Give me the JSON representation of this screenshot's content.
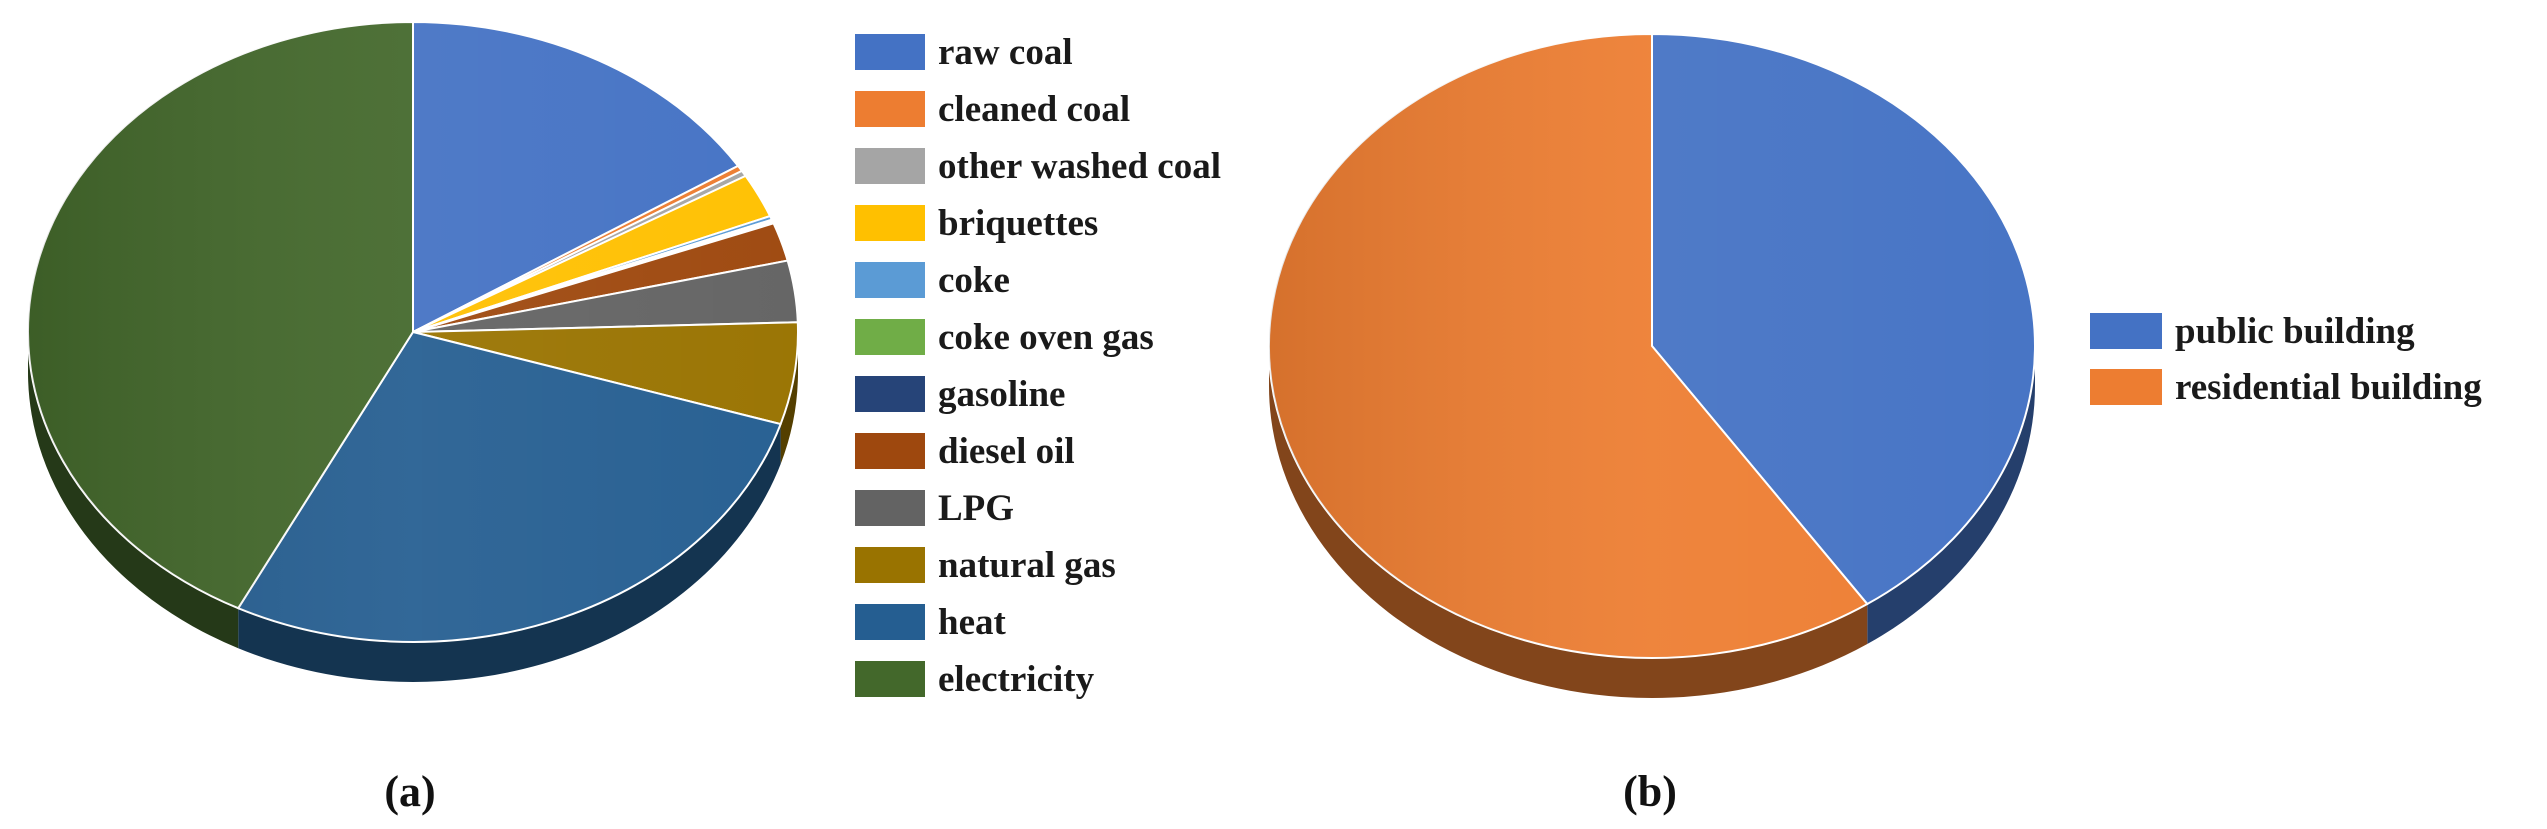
{
  "chart_data": [
    {
      "type": "pie",
      "panel_label": "(a)",
      "legend_position": "right",
      "start_angle_deg": 0,
      "direction": "clockwise",
      "three_d": true,
      "slices": [
        {
          "label": "raw coal",
          "value": 16.0,
          "color": "#4472C4"
        },
        {
          "label": "cleaned coal",
          "value": 0.3,
          "color": "#ED7D31"
        },
        {
          "label": "other washed coal",
          "value": 0.3,
          "color": "#A5A5A5"
        },
        {
          "label": "briquettes",
          "value": 2.3,
          "color": "#FFC000"
        },
        {
          "label": "coke",
          "value": 0.2,
          "color": "#5B9BD5"
        },
        {
          "label": "coke oven gas",
          "value": 0.1,
          "color": "#70AD47"
        },
        {
          "label": "gasoline",
          "value": 0.1,
          "color": "#264478"
        },
        {
          "label": "diesel oil",
          "value": 2.0,
          "color": "#9E480E"
        },
        {
          "label": "LPG",
          "value": 3.2,
          "color": "#636363"
        },
        {
          "label": "natural gas",
          "value": 5.3,
          "color": "#997300"
        },
        {
          "label": "heat",
          "value": 27.7,
          "color": "#255E91"
        },
        {
          "label": "electricity",
          "value": 42.5,
          "color": "#43682B"
        }
      ]
    },
    {
      "type": "pie",
      "panel_label": "(b)",
      "legend_position": "right",
      "start_angle_deg": 0,
      "direction": "clockwise",
      "three_d": true,
      "slices": [
        {
          "label": "public building",
          "value": 40.5,
          "color": "#4472C4"
        },
        {
          "label": "residential building",
          "value": 59.5,
          "color": "#ED7D31"
        }
      ]
    }
  ]
}
